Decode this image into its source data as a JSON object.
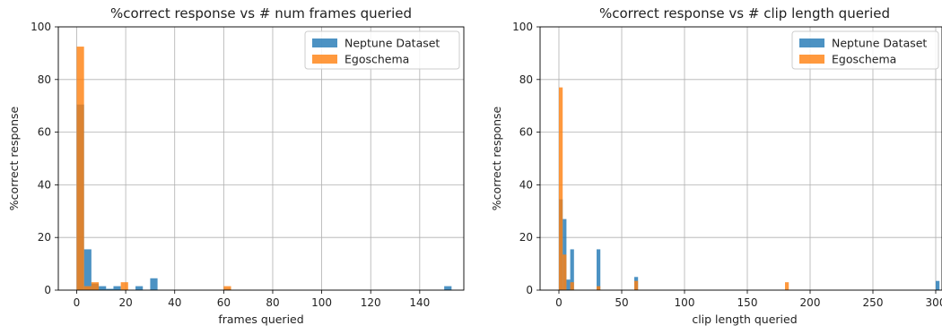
{
  "chart_data": [
    {
      "type": "bar",
      "title": "%correct response vs # num frames queried",
      "xlabel": "frames queried",
      "ylabel": "%correct response",
      "xlim": [
        -7.5,
        158
      ],
      "ylim": [
        0,
        100
      ],
      "xticks": [
        0,
        20,
        40,
        60,
        80,
        100,
        120,
        140
      ],
      "yticks": [
        0,
        20,
        40,
        60,
        80,
        100
      ],
      "grid": true,
      "legend_position": "top-right",
      "bin_width": 3,
      "series": [
        {
          "name": "Neptune Dataset",
          "color": "#1f77b4",
          "bins": [
            {
              "x": 0,
              "value": 70.5
            },
            {
              "x": 3,
              "value": 15.5
            },
            {
              "x": 6,
              "value": 2.5
            },
            {
              "x": 9,
              "value": 1.5
            },
            {
              "x": 12,
              "value": 0.5
            },
            {
              "x": 15,
              "value": 1.5
            },
            {
              "x": 24,
              "value": 1.5
            },
            {
              "x": 30,
              "value": 4.5
            },
            {
              "x": 60,
              "value": 0.5
            },
            {
              "x": 150,
              "value": 1.5
            }
          ]
        },
        {
          "name": "Egoschema",
          "color": "#ff7f0e",
          "bins": [
            {
              "x": 0,
              "value": 92.5
            },
            {
              "x": 3,
              "value": 1.5
            },
            {
              "x": 6,
              "value": 3.0
            },
            {
              "x": 18,
              "value": 3.0
            },
            {
              "x": 60,
              "value": 1.5
            }
          ]
        }
      ]
    },
    {
      "type": "bar",
      "title": "%correct response vs # clip length queried",
      "xlabel": "clip length queried",
      "ylabel": "%correct response",
      "xlim": [
        -15,
        305
      ],
      "ylim": [
        0,
        100
      ],
      "xticks": [
        0,
        50,
        100,
        150,
        200,
        250,
        300
      ],
      "yticks": [
        0,
        20,
        40,
        60,
        80,
        100
      ],
      "grid": true,
      "legend_position": "top-right",
      "bin_width": 3,
      "series": [
        {
          "name": "Neptune Dataset",
          "color": "#1f77b4",
          "bins": [
            {
              "x": 0,
              "value": 34.5
            },
            {
              "x": 3,
              "value": 27.0
            },
            {
              "x": 6,
              "value": 4.0
            },
            {
              "x": 9,
              "value": 15.5
            },
            {
              "x": 30,
              "value": 15.5
            },
            {
              "x": 60,
              "value": 5.0
            },
            {
              "x": 300,
              "value": 3.5
            }
          ]
        },
        {
          "name": "Egoschema",
          "color": "#ff7f0e",
          "bins": [
            {
              "x": 0,
              "value": 77.0
            },
            {
              "x": 3,
              "value": 13.5
            },
            {
              "x": 9,
              "value": 3.0
            },
            {
              "x": 30,
              "value": 1.5
            },
            {
              "x": 60,
              "value": 3.5
            },
            {
              "x": 180,
              "value": 3.0
            }
          ]
        }
      ]
    }
  ]
}
